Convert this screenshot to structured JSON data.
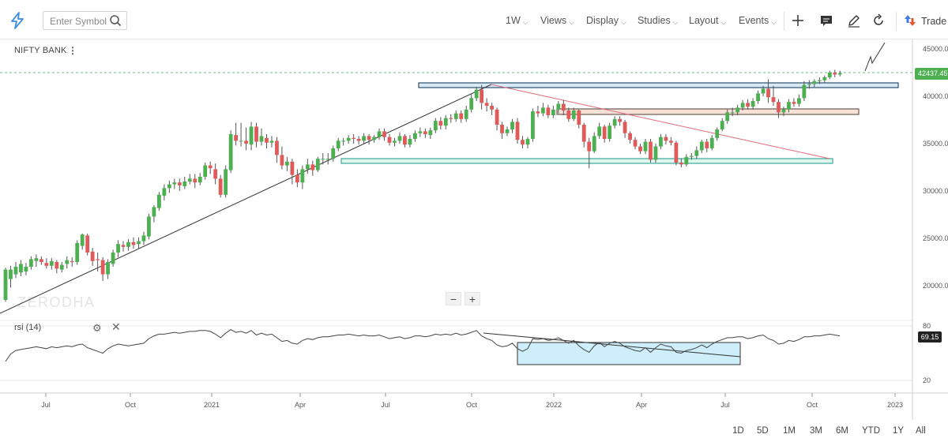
{
  "toolbar": {
    "search_placeholder": "Enter Symbol",
    "interval": "1W",
    "menus": [
      "Views",
      "Display",
      "Studies",
      "Layout",
      "Events"
    ],
    "trade_label": "Trade",
    "icons": [
      "logo-bolt-icon",
      "search-icon",
      "crosshair-icon",
      "annotation-icon",
      "pencil-icon",
      "refresh-icon",
      "trade-arrows-icon"
    ]
  },
  "chart": {
    "symbol": "NIFTY BANK",
    "last_price": "42437.45",
    "watermark": "ZERODHA",
    "zoom_out": "−",
    "zoom_in": "+",
    "colors": {
      "up": "#4caf50",
      "down": "#e05a5a",
      "price_line": "#66c08a",
      "trendline": "#333333",
      "red_trendline": "#e06a77"
    }
  },
  "rsi": {
    "label": "rsi (14)",
    "value": "69.15",
    "upper_band": "80",
    "lower_band": "20"
  },
  "chart_data": {
    "type": "candlestick",
    "title": "NIFTY BANK",
    "ylim": [
      19000,
      46000
    ],
    "y_ticks": [
      "45000.0",
      "40000.0",
      "35000.0",
      "30000.0",
      "25000.0",
      "20000.0"
    ],
    "x_ticks": [
      "Jul",
      "Oct",
      "2021",
      "Apr",
      "Jul",
      "Oct",
      "2022",
      "Apr",
      "Jul",
      "Oct",
      "2023"
    ],
    "candles": [
      [
        18500,
        21700,
        18300,
        21900
      ],
      [
        20700,
        21700,
        19800,
        22100
      ],
      [
        21200,
        22000,
        20800,
        22500
      ],
      [
        21400,
        22300,
        21000,
        22700
      ],
      [
        21500,
        22000,
        21100,
        22400
      ],
      [
        22000,
        22800,
        21700,
        23100
      ],
      [
        22600,
        22900,
        22000,
        23300
      ],
      [
        22800,
        22500,
        22200,
        23100
      ],
      [
        22400,
        22100,
        21800,
        22900
      ],
      [
        22100,
        22600,
        21700,
        22900
      ],
      [
        22500,
        21800,
        21300,
        22700
      ],
      [
        21700,
        22200,
        21400,
        22500
      ],
      [
        22300,
        22700,
        21800,
        23100
      ],
      [
        22600,
        22500,
        22000,
        23000
      ],
      [
        22500,
        24500,
        22200,
        24800
      ],
      [
        24200,
        25400,
        23800,
        25500
      ],
      [
        25300,
        23500,
        23200,
        25500
      ],
      [
        23600,
        22600,
        22100,
        24000
      ],
      [
        22800,
        22700,
        21500,
        23500
      ],
      [
        22700,
        21200,
        20500,
        23000
      ],
      [
        21200,
        22500,
        20700,
        22800
      ],
      [
        22300,
        23500,
        22000,
        23800
      ],
      [
        23500,
        24400,
        23000,
        24800
      ],
      [
        24300,
        24100,
        23600,
        24700
      ],
      [
        24100,
        24600,
        23700,
        24900
      ],
      [
        24600,
        24300,
        23900,
        25100
      ],
      [
        24400,
        24700,
        23900,
        25100
      ],
      [
        24700,
        25300,
        24300,
        25700
      ],
      [
        25200,
        27300,
        24900,
        27600
      ],
      [
        27300,
        28300,
        26700,
        28500
      ],
      [
        28200,
        29600,
        27900,
        29900
      ],
      [
        29500,
        30300,
        29000,
        30700
      ],
      [
        30300,
        30700,
        29800,
        31100
      ],
      [
        30700,
        30900,
        30200,
        31300
      ],
      [
        30900,
        30600,
        30000,
        31300
      ],
      [
        30500,
        31000,
        30200,
        31500
      ],
      [
        31000,
        31300,
        30700,
        31800
      ],
      [
        31300,
        30900,
        30300,
        31800
      ],
      [
        30900,
        31500,
        30600,
        31900
      ],
      [
        31500,
        32700,
        31200,
        33000
      ],
      [
        32700,
        32400,
        31800,
        33100
      ],
      [
        32300,
        31300,
        30700,
        32900
      ],
      [
        31300,
        29600,
        29300,
        31700
      ],
      [
        29600,
        32300,
        29300,
        32700
      ],
      [
        32200,
        36000,
        31900,
        36400
      ],
      [
        35900,
        35300,
        34800,
        37200
      ],
      [
        35300,
        35300,
        34700,
        37200
      ],
      [
        35300,
        35000,
        34300,
        36700
      ],
      [
        34900,
        36800,
        34300,
        37300
      ],
      [
        36800,
        35200,
        34600,
        37200
      ],
      [
        35200,
        35800,
        34800,
        36600
      ],
      [
        35600,
        35100,
        34500,
        36000
      ],
      [
        35100,
        35300,
        34600,
        35800
      ],
      [
        35300,
        33800,
        33000,
        35700
      ],
      [
        33800,
        32700,
        32300,
        34700
      ],
      [
        32700,
        33100,
        32100,
        33600
      ],
      [
        33100,
        31700,
        30700,
        33400
      ],
      [
        31700,
        30900,
        30400,
        32300
      ],
      [
        30900,
        32300,
        30200,
        32700
      ],
      [
        32300,
        32800,
        31800,
        33400
      ],
      [
        32800,
        32200,
        31600,
        33200
      ],
      [
        32200,
        33400,
        32000,
        33600
      ],
      [
        33400,
        33400,
        32800,
        34000
      ],
      [
        33300,
        33400,
        32800,
        34000
      ],
      [
        33400,
        34500,
        33100,
        34800
      ],
      [
        34500,
        35300,
        34200,
        35600
      ],
      [
        35300,
        35300,
        34800,
        35600
      ],
      [
        35300,
        35600,
        35000,
        35900
      ],
      [
        35600,
        35500,
        35000,
        36000
      ],
      [
        35500,
        35300,
        34900,
        35800
      ],
      [
        35300,
        35800,
        35000,
        36100
      ],
      [
        35800,
        35400,
        34900,
        36000
      ],
      [
        35400,
        35700,
        35100,
        35900
      ],
      [
        35700,
        36300,
        35400,
        36600
      ],
      [
        36300,
        35700,
        35300,
        36600
      ],
      [
        35700,
        35100,
        34800,
        36000
      ],
      [
        35100,
        35300,
        34700,
        35600
      ],
      [
        35300,
        35800,
        35000,
        36200
      ],
      [
        35800,
        34900,
        34600,
        36000
      ],
      [
        34900,
        35500,
        34600,
        35900
      ],
      [
        35500,
        36100,
        35200,
        36400
      ],
      [
        36100,
        36300,
        35700,
        36700
      ],
      [
        36300,
        36000,
        35600,
        36600
      ],
      [
        35900,
        36400,
        35500,
        36700
      ],
      [
        36400,
        37400,
        36100,
        37700
      ],
      [
        37400,
        36900,
        36500,
        37800
      ],
      [
        36900,
        37700,
        36500,
        38000
      ],
      [
        37700,
        37600,
        37200,
        38100
      ],
      [
        37600,
        38200,
        37300,
        38500
      ],
      [
        38200,
        37600,
        37200,
        38500
      ],
      [
        37600,
        38600,
        37300,
        39000
      ],
      [
        38600,
        39800,
        38300,
        40200
      ],
      [
        39800,
        40700,
        39500,
        41000
      ],
      [
        40700,
        39300,
        38600,
        41200
      ],
      [
        39300,
        39000,
        38400,
        39800
      ],
      [
        39000,
        38600,
        38000,
        39300
      ],
      [
        38600,
        37000,
        36400,
        38800
      ],
      [
        37000,
        36100,
        35500,
        37300
      ],
      [
        36100,
        36500,
        35800,
        36800
      ],
      [
        36500,
        37300,
        36100,
        37600
      ],
      [
        37300,
        35400,
        35000,
        37700
      ],
      [
        35400,
        34900,
        34500,
        35800
      ],
      [
        34900,
        35500,
        34500,
        35700
      ],
      [
        35500,
        38400,
        35200,
        38700
      ],
      [
        38400,
        38200,
        37800,
        39000
      ],
      [
        38200,
        38800,
        37900,
        39300
      ],
      [
        38800,
        38000,
        37700,
        39100
      ],
      [
        38000,
        38600,
        37700,
        39000
      ],
      [
        38600,
        39200,
        38200,
        39500
      ],
      [
        39200,
        38500,
        38000,
        39600
      ],
      [
        38500,
        37600,
        37300,
        38800
      ],
      [
        37600,
        38500,
        37400,
        38800
      ],
      [
        38500,
        37000,
        36600,
        38600
      ],
      [
        37000,
        35200,
        34600,
        37200
      ],
      [
        35200,
        34200,
        32400,
        35600
      ],
      [
        34200,
        35800,
        34000,
        36200
      ],
      [
        35800,
        36800,
        35500,
        37200
      ],
      [
        36800,
        35500,
        35100,
        37000
      ],
      [
        35500,
        36900,
        35200,
        37200
      ],
      [
        36900,
        37600,
        36600,
        37900
      ],
      [
        37600,
        37300,
        36900,
        37900
      ],
      [
        37300,
        36100,
        35600,
        37500
      ],
      [
        36100,
        35400,
        35000,
        36300
      ],
      [
        35400,
        34700,
        34400,
        35700
      ],
      [
        34700,
        34200,
        33900,
        35000
      ],
      [
        34200,
        35200,
        33900,
        35500
      ],
      [
        35200,
        33300,
        33000,
        35500
      ],
      [
        33300,
        34700,
        33000,
        35000
      ],
      [
        34700,
        35700,
        34400,
        36000
      ],
      [
        35700,
        35300,
        34900,
        36000
      ],
      [
        35300,
        35100,
        34800,
        35700
      ],
      [
        35100,
        33000,
        32700,
        35300
      ],
      [
        33000,
        32800,
        32500,
        33400
      ],
      [
        32800,
        33600,
        32600,
        33900
      ],
      [
        33600,
        33700,
        33300,
        34000
      ],
      [
        33700,
        34300,
        33400,
        34700
      ],
      [
        34300,
        35200,
        34000,
        35400
      ],
      [
        35200,
        34500,
        34100,
        35500
      ],
      [
        34500,
        35600,
        34300,
        35900
      ],
      [
        35600,
        36500,
        35300,
        36700
      ],
      [
        36500,
        37400,
        36300,
        37700
      ],
      [
        37400,
        38300,
        37100,
        38600
      ],
      [
        38300,
        38300,
        37900,
        38800
      ],
      [
        38300,
        38800,
        38000,
        39100
      ],
      [
        38800,
        39300,
        38500,
        39600
      ],
      [
        39300,
        38900,
        38600,
        39700
      ],
      [
        38900,
        39500,
        38600,
        39800
      ],
      [
        39500,
        40300,
        39200,
        40600
      ],
      [
        40300,
        40800,
        40000,
        41100
      ],
      [
        40800,
        39900,
        39300,
        41800
      ],
      [
        39900,
        39400,
        39000,
        41100
      ],
      [
        39400,
        38300,
        37700,
        39700
      ],
      [
        38300,
        38600,
        37900,
        38900
      ],
      [
        38600,
        39400,
        38300,
        39700
      ],
      [
        39400,
        39200,
        38900,
        39800
      ],
      [
        39200,
        39800,
        38900,
        40200
      ],
      [
        39800,
        41200,
        39500,
        41600
      ],
      [
        41200,
        41300,
        40800,
        41700
      ],
      [
        41300,
        41600,
        41000,
        41800
      ],
      [
        41600,
        41700,
        41300,
        42000
      ],
      [
        41700,
        42000,
        41400,
        42200
      ],
      [
        42000,
        42500,
        41800,
        42700
      ],
      [
        42500,
        42300,
        42000,
        42800
      ],
      [
        42300,
        42437,
        42100,
        42700
      ]
    ],
    "rsi_values": [
      41,
      49,
      53,
      54,
      55,
      56,
      57,
      56,
      55,
      57,
      56,
      57,
      58,
      57,
      59,
      60,
      56,
      54,
      52,
      50,
      55,
      58,
      60,
      59,
      58,
      59,
      60,
      61,
      66,
      69,
      71,
      71,
      72,
      73,
      72,
      73,
      74,
      74,
      75,
      75,
      74,
      71,
      67,
      72,
      76,
      73,
      74,
      72,
      75,
      70,
      72,
      70,
      71,
      67,
      63,
      64,
      61,
      60,
      64,
      66,
      65,
      67,
      68,
      68,
      69,
      70,
      70,
      71,
      70,
      69,
      70,
      69,
      69,
      70,
      68,
      66,
      67,
      68,
      66,
      67,
      69,
      69,
      68,
      69,
      71,
      70,
      71,
      70,
      72,
      70,
      71,
      73,
      75,
      69,
      66,
      64,
      59,
      57,
      58,
      61,
      55,
      52,
      55,
      66,
      65,
      66,
      64,
      65,
      67,
      64,
      61,
      64,
      58,
      54,
      51,
      58,
      62,
      57,
      61,
      63,
      61,
      57,
      55,
      53,
      52,
      56,
      51,
      56,
      60,
      58,
      57,
      51,
      50,
      53,
      54,
      56,
      59,
      56,
      60,
      63,
      65,
      67,
      67,
      68,
      68,
      66,
      67,
      69,
      70,
      66,
      64,
      60,
      61,
      64,
      63,
      65,
      68,
      68,
      69,
      69,
      70,
      71,
      70,
      69
    ]
  },
  "periods": [
    "1D",
    "5D",
    "1M",
    "3M",
    "6M",
    "YTD",
    "1Y",
    "All"
  ]
}
